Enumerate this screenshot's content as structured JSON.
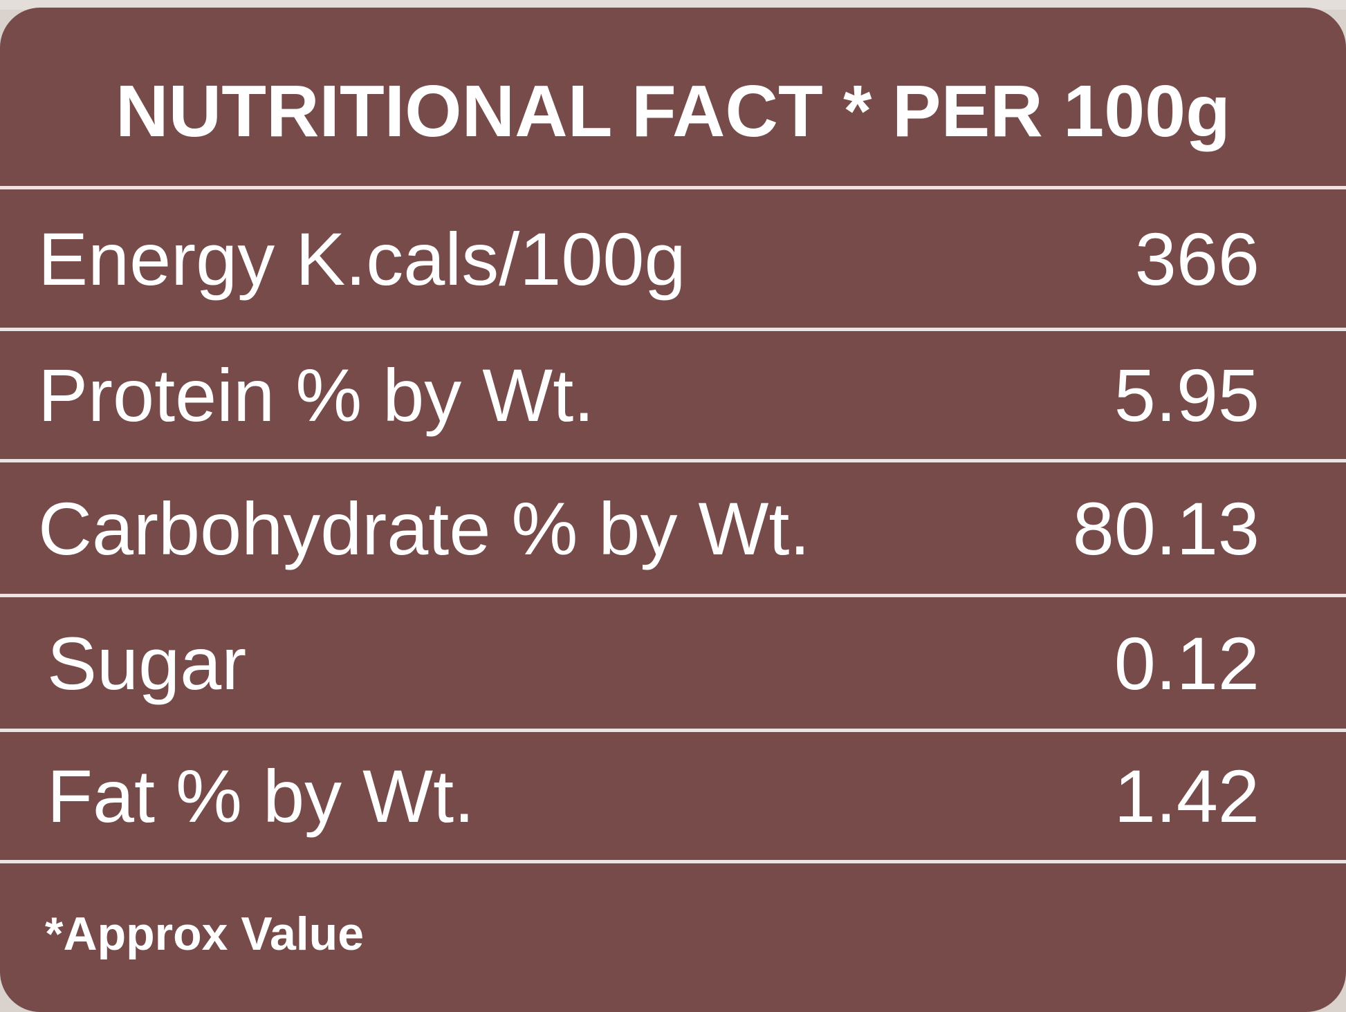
{
  "table": {
    "title": "NUTRITIONAL FACT * PER 100g",
    "rows": [
      {
        "label": "Energy K.cals/100g",
        "value": "366"
      },
      {
        "label": "Protein % by Wt.",
        "value": "5.95"
      },
      {
        "label": "Carbohydrate % by Wt.",
        "value": "80.13"
      },
      {
        "label": "Sugar",
        "value": "0.12"
      },
      {
        "label": "Fat % by Wt.",
        "value": "1.42"
      }
    ],
    "footnote": "*Approx Value"
  },
  "colors": {
    "card_background": "#764b4a",
    "text": "#ffffff",
    "divider": "#ece4e2"
  }
}
